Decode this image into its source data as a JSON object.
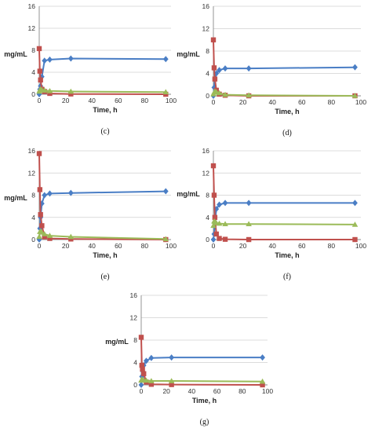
{
  "chart_data": [
    {
      "type": "line",
      "caption": "(c)",
      "xlabel": "Time, h",
      "ylabel": "mg/mL",
      "xlim": [
        0,
        100
      ],
      "ylim": [
        0,
        16
      ],
      "xticks": [
        0,
        20,
        40,
        60,
        80,
        100
      ],
      "yticks": [
        0,
        4,
        8,
        12,
        16
      ],
      "grid": true,
      "series": [
        {
          "color": "#4a7ec5",
          "marker": "diamond",
          "x": [
            0,
            0.5,
            1,
            2,
            4,
            8,
            24,
            96
          ],
          "y": [
            0,
            0.9,
            1.5,
            3.2,
            6.1,
            6.3,
            6.5,
            6.4
          ]
        },
        {
          "color": "#c0504d",
          "marker": "square",
          "x": [
            0,
            0.5,
            1,
            2,
            4,
            8,
            24,
            96
          ],
          "y": [
            8.3,
            4.2,
            2.6,
            0.9,
            0.5,
            0.15,
            0.05,
            0
          ]
        },
        {
          "color": "#9bbb59",
          "marker": "triangle",
          "x": [
            0,
            0.5,
            1,
            2,
            4,
            8,
            24,
            96
          ],
          "y": [
            0.5,
            0.8,
            0.9,
            0.8,
            0.7,
            0.6,
            0.5,
            0.4
          ]
        }
      ]
    },
    {
      "type": "line",
      "caption": "(d)",
      "xlabel": "Time, h",
      "ylabel": "mg/mL",
      "xlim": [
        0,
        100
      ],
      "ylim": [
        0,
        16
      ],
      "xticks": [
        0,
        20,
        40,
        60,
        80,
        100
      ],
      "yticks": [
        0,
        4,
        8,
        12,
        16
      ],
      "grid": true,
      "series": [
        {
          "color": "#4a7ec5",
          "marker": "diamond",
          "x": [
            0,
            0.5,
            1,
            2,
            4,
            8,
            24,
            96
          ],
          "y": [
            0,
            1.5,
            3.0,
            4.0,
            4.6,
            4.9,
            4.9,
            5.1
          ]
        },
        {
          "color": "#c0504d",
          "marker": "square",
          "x": [
            0,
            0.5,
            1,
            2,
            4,
            8,
            24,
            96
          ],
          "y": [
            10.0,
            5.0,
            3.0,
            1.0,
            0.3,
            0.1,
            0,
            0
          ]
        },
        {
          "color": "#9bbb59",
          "marker": "triangle",
          "x": [
            0,
            0.5,
            1,
            2,
            4,
            8,
            24,
            96
          ],
          "y": [
            0.3,
            0.6,
            0.8,
            0.7,
            0.5,
            0.2,
            0.1,
            0
          ]
        }
      ]
    },
    {
      "type": "line",
      "caption": "(e)",
      "xlabel": "Time, h",
      "ylabel": "mg/mL",
      "xlim": [
        0,
        100
      ],
      "ylim": [
        0,
        16
      ],
      "xticks": [
        0,
        20,
        40,
        60,
        80,
        100
      ],
      "yticks": [
        0,
        4,
        8,
        12,
        16
      ],
      "grid": true,
      "series": [
        {
          "color": "#4a7ec5",
          "marker": "diamond",
          "x": [
            0,
            0.5,
            1,
            2,
            4,
            8,
            24,
            96
          ],
          "y": [
            0,
            2.0,
            4.0,
            6.5,
            8.0,
            8.3,
            8.4,
            8.7
          ]
        },
        {
          "color": "#c0504d",
          "marker": "square",
          "x": [
            0,
            0.5,
            1,
            2,
            4,
            8,
            24,
            96
          ],
          "y": [
            15.5,
            9.0,
            4.5,
            2.5,
            0.5,
            0.2,
            0.1,
            0
          ]
        },
        {
          "color": "#9bbb59",
          "marker": "triangle",
          "x": [
            0,
            0.5,
            1,
            2,
            4,
            8,
            24,
            96
          ],
          "y": [
            0.5,
            1.4,
            1.5,
            1.3,
            1.0,
            0.7,
            0.5,
            0.1
          ]
        }
      ]
    },
    {
      "type": "line",
      "caption": "(f)",
      "xlabel": "Time, h",
      "ylabel": "mg/mL",
      "xlim": [
        0,
        100
      ],
      "ylim": [
        0,
        16
      ],
      "xticks": [
        0,
        20,
        40,
        60,
        80,
        100
      ],
      "yticks": [
        0,
        4,
        8,
        12,
        16
      ],
      "grid": true,
      "series": [
        {
          "color": "#4a7ec5",
          "marker": "diamond",
          "x": [
            0,
            0.5,
            1,
            2,
            4,
            8,
            24,
            96
          ],
          "y": [
            0,
            1.0,
            3.0,
            5.5,
            6.3,
            6.6,
            6.6,
            6.6
          ]
        },
        {
          "color": "#c0504d",
          "marker": "square",
          "x": [
            0,
            0.5,
            1,
            2,
            4,
            8,
            24,
            96
          ],
          "y": [
            13.3,
            8.0,
            4.0,
            1.0,
            0.2,
            0.05,
            0,
            0
          ]
        },
        {
          "color": "#9bbb59",
          "marker": "triangle",
          "x": [
            0,
            0.5,
            1,
            2,
            4,
            8,
            24,
            96
          ],
          "y": [
            2.5,
            3.3,
            3.2,
            3.0,
            2.9,
            2.8,
            2.8,
            2.7
          ]
        }
      ]
    },
    {
      "type": "line",
      "caption": "(g)",
      "xlabel": "Time, h",
      "ylabel": "mg/mL",
      "xlim": [
        0,
        100
      ],
      "ylim": [
        0,
        16
      ],
      "xticks": [
        0,
        20,
        40,
        60,
        80,
        100
      ],
      "yticks": [
        0,
        4,
        8,
        12,
        16
      ],
      "grid": true,
      "series": [
        {
          "color": "#4a7ec5",
          "marker": "diamond",
          "x": [
            0,
            0.5,
            1,
            2,
            4,
            8,
            24,
            96
          ],
          "y": [
            0,
            1.5,
            2.5,
            3.5,
            4.3,
            4.8,
            4.9,
            4.9
          ]
        },
        {
          "color": "#c0504d",
          "marker": "square",
          "x": [
            0,
            0.5,
            1,
            2,
            4,
            8,
            24,
            96
          ],
          "y": [
            8.5,
            3.5,
            2.8,
            2.0,
            0.5,
            0.1,
            0.05,
            0
          ]
        },
        {
          "color": "#9bbb59",
          "marker": "triangle",
          "x": [
            0,
            0.5,
            1,
            2,
            4,
            8,
            24,
            96
          ],
          "y": [
            0.8,
            1.0,
            0.9,
            0.8,
            0.8,
            0.7,
            0.7,
            0.6
          ]
        }
      ]
    }
  ]
}
